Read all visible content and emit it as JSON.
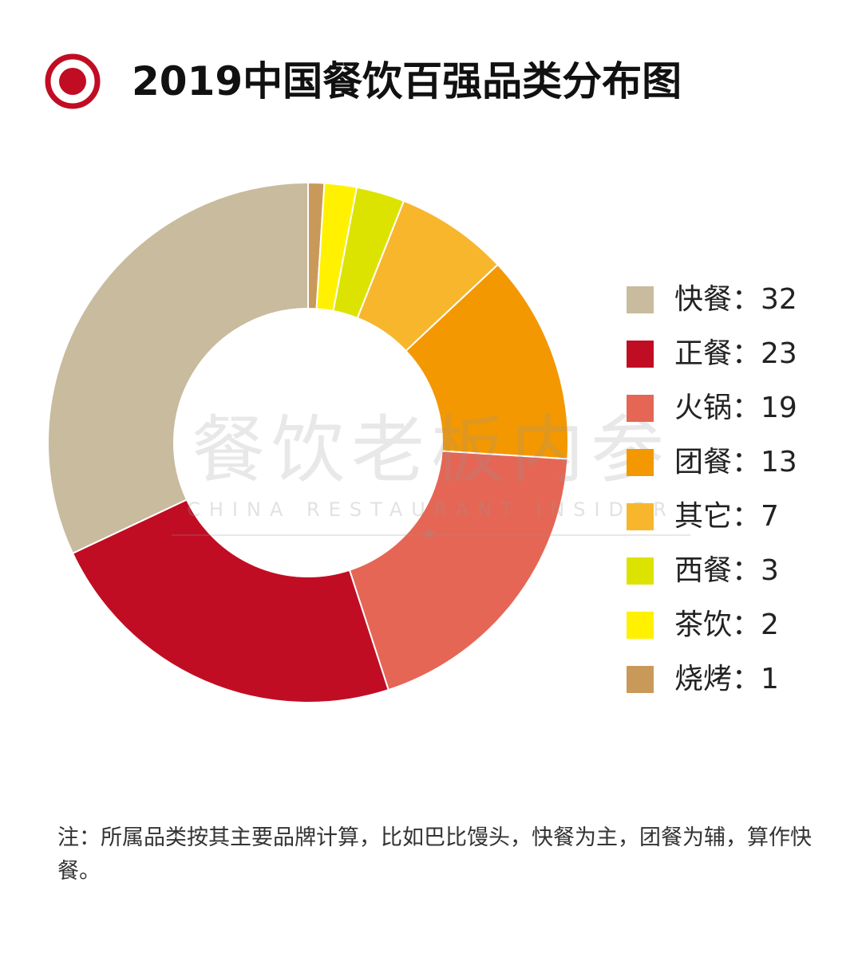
{
  "header": {
    "title": "2019中国餐饮百强品类分布图"
  },
  "watermark": {
    "name": "餐饮老板内参",
    "subtitle": "CHINA RESTAURANT INSIDER"
  },
  "chart_data": {
    "type": "pie",
    "donut": true,
    "title": "2019中国餐饮百强品类分布图",
    "legend_position": "right",
    "slices": [
      {
        "label": "快餐",
        "value": 32,
        "color": "#c8bb9e"
      },
      {
        "label": "正餐",
        "value": 23,
        "color": "#c10d23"
      },
      {
        "label": "火锅",
        "value": 19,
        "color": "#e56655"
      },
      {
        "label": "团餐",
        "value": 13,
        "color": "#f39800"
      },
      {
        "label": "其它",
        "value": 7,
        "color": "#f8b62d"
      },
      {
        "label": "西餐",
        "value": 3,
        "color": "#dde300"
      },
      {
        "label": "茶饮",
        "value": 2,
        "color": "#fff100"
      },
      {
        "label": "烧烤",
        "value": 1,
        "color": "#c9995a"
      }
    ]
  },
  "legend": {
    "separator": "："
  },
  "footnote": "注：所属品类按其主要品牌计算，比如巴比馒头，快餐为主，团餐为辅，算作快餐。",
  "colors": {
    "accent": "#c10d23",
    "title": "#111111"
  }
}
